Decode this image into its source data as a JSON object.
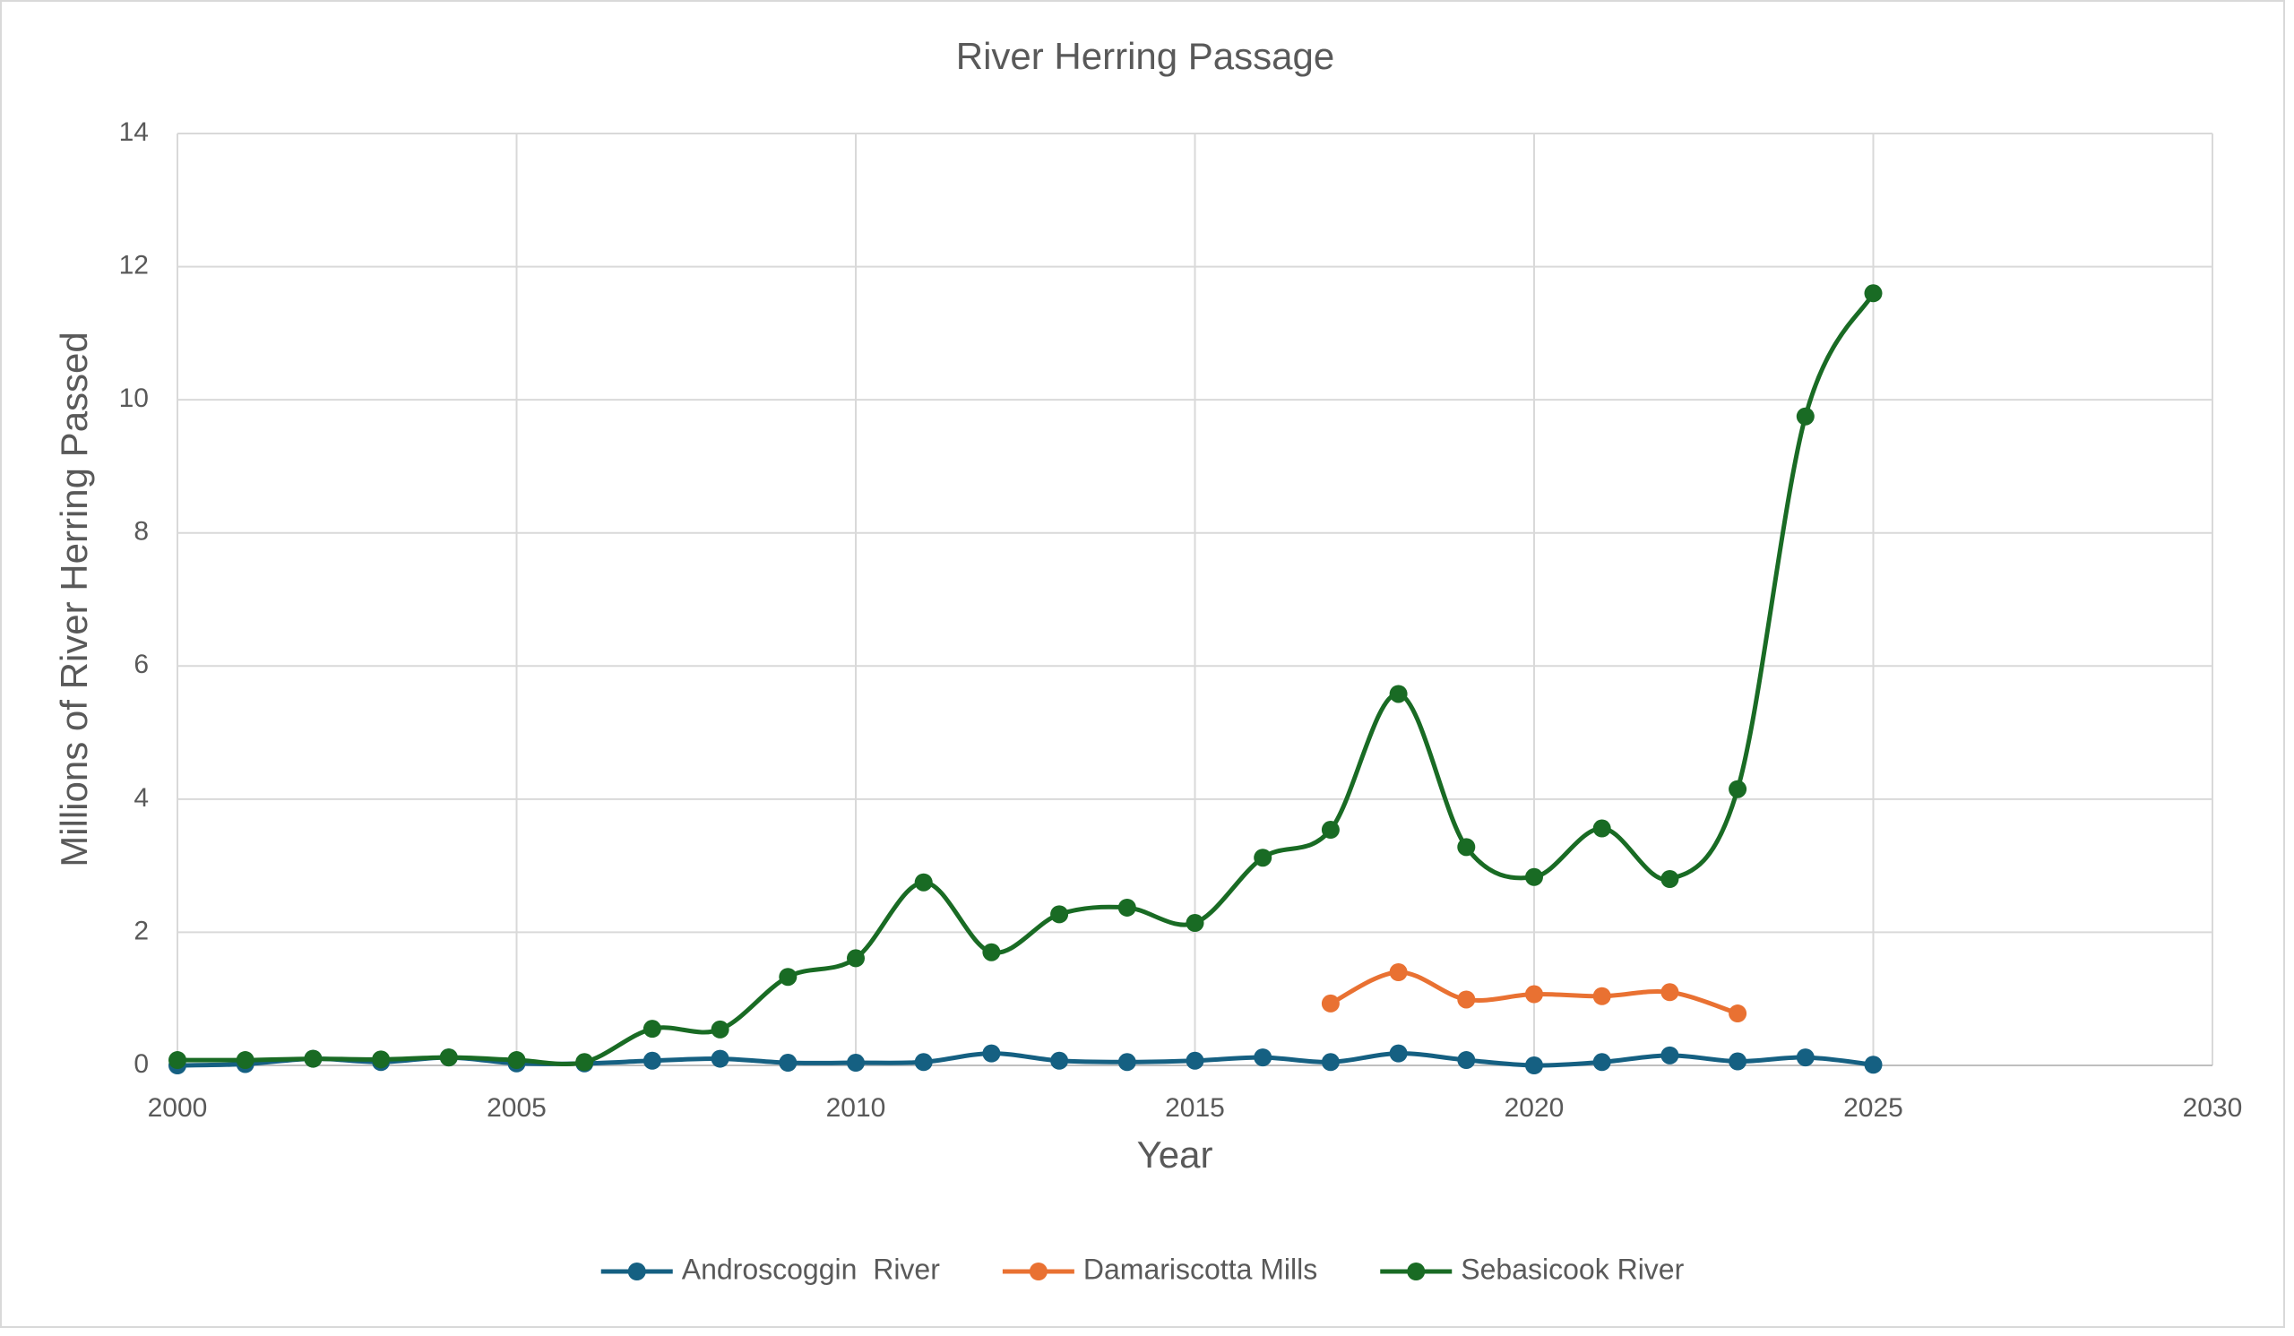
{
  "chart_data": {
    "type": "line",
    "title": "River Herring Passage",
    "x_label": "Year",
    "y_label": "Millions of River Herring Passed",
    "x": [
      2000,
      2001,
      2002,
      2003,
      2004,
      2005,
      2006,
      2007,
      2008,
      2009,
      2010,
      2011,
      2012,
      2013,
      2014,
      2015,
      2016,
      2017,
      2018,
      2019,
      2020,
      2021,
      2022,
      2023,
      2024,
      2025
    ],
    "series": [
      {
        "name": "Androscoggin  River",
        "color": "#156082",
        "values": [
          0.0,
          0.02,
          0.1,
          0.05,
          0.12,
          0.03,
          0.03,
          0.07,
          0.1,
          0.04,
          0.04,
          0.05,
          0.18,
          0.07,
          0.05,
          0.07,
          0.12,
          0.05,
          0.18,
          0.08,
          0.0,
          0.05,
          0.15,
          0.06,
          0.12,
          0.01
        ]
      },
      {
        "name": "Damariscotta Mills",
        "color": "#e97132",
        "values": [
          null,
          null,
          null,
          null,
          null,
          null,
          null,
          null,
          null,
          null,
          null,
          null,
          null,
          null,
          null,
          null,
          null,
          0.93,
          1.4,
          0.99,
          1.07,
          1.04,
          1.1,
          0.78,
          null,
          null
        ]
      },
      {
        "name": "Sebasicook River",
        "color": "#196b24",
        "values": [
          0.08,
          0.08,
          0.1,
          0.09,
          0.12,
          0.08,
          0.05,
          0.55,
          0.54,
          1.33,
          1.61,
          2.75,
          1.7,
          2.27,
          2.37,
          2.14,
          3.12,
          3.54,
          5.58,
          3.28,
          2.83,
          3.56,
          2.8,
          4.15,
          9.75,
          11.6
        ]
      }
    ],
    "xlim": [
      2000,
      2030
    ],
    "xticks": [
      2000,
      2005,
      2010,
      2015,
      2020,
      2025,
      2030
    ],
    "ylim": [
      0,
      14
    ],
    "yticks": [
      0,
      2,
      4,
      6,
      8,
      10,
      12,
      14
    ],
    "grid": true,
    "smooth": true,
    "legend": "bottom"
  }
}
